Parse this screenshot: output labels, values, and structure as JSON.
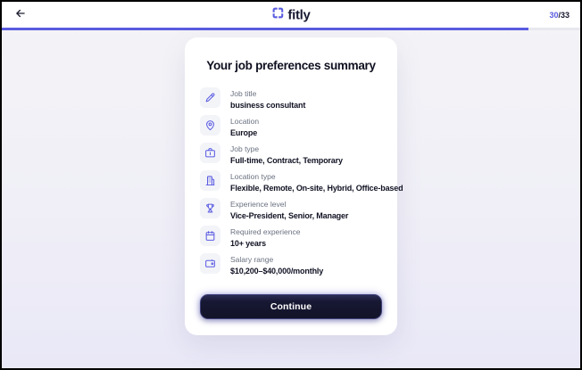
{
  "header": {
    "logo_text": "fitly",
    "progress_current": "30",
    "progress_total": "/33",
    "progress_percent": 91
  },
  "card": {
    "title": "Your job preferences summary",
    "rows": [
      {
        "icon": "pencil",
        "label": "Job title",
        "value": "business consultant"
      },
      {
        "icon": "location-pin",
        "label": "Location",
        "value": "Europe"
      },
      {
        "icon": "briefcase",
        "label": "Job type",
        "value": "Full-time, Contract, Temporary"
      },
      {
        "icon": "building",
        "label": "Location type",
        "value": "Flexible, Remote, On-site, Hybrid, Office-based"
      },
      {
        "icon": "trophy",
        "label": "Experience level",
        "value": "Vice-President, Senior, Manager"
      },
      {
        "icon": "calendar",
        "label": "Required experience",
        "value": "10+ years"
      },
      {
        "icon": "wallet",
        "label": "Salary range",
        "value": "$10,200–$40,000/monthly"
      }
    ],
    "continue_label": "Continue"
  },
  "colors": {
    "accent": "#5a5ce0",
    "dark_navy": "#16182e",
    "label_gray": "#6a7180",
    "button_bg": "#171833"
  }
}
